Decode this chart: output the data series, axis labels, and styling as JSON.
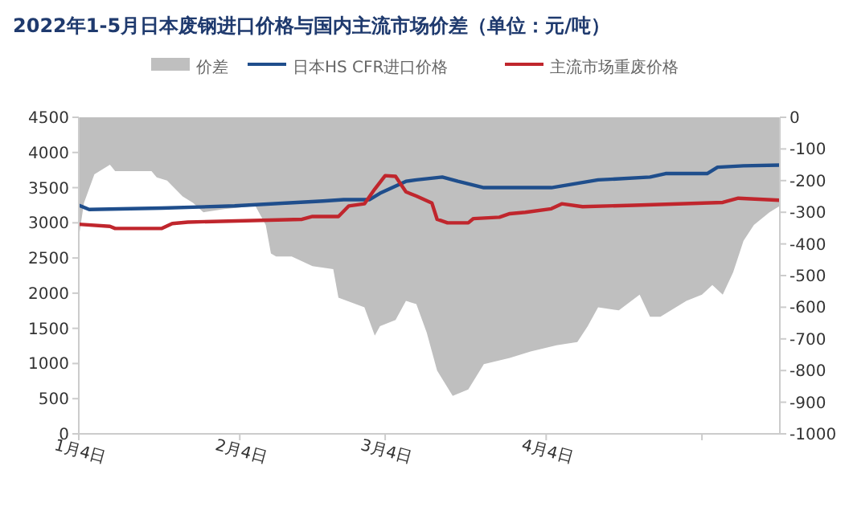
{
  "chart_data": {
    "type": "line",
    "title": "2022年1-5月日本废钢进口价格与国内主流市场价差（单位：元/吨）",
    "legend": "top",
    "xlim": [
      "--01-04",
      "--05-19"
    ],
    "xticks": [
      {
        "value": "--01-04",
        "label": "1月4日"
      },
      {
        "value": "--02-04",
        "label": "2月4日"
      },
      {
        "value": "--03-04",
        "label": "3月4日"
      },
      {
        "value": "--04-04",
        "label": "4月4日"
      },
      {
        "value": "--05-04",
        "label": null
      }
    ],
    "ylim": [
      0,
      4500
    ],
    "yticks": [
      0,
      500,
      1000,
      1500,
      2000,
      2500,
      3000,
      3500,
      4000,
      4500
    ],
    "y2lim": [
      -1000,
      0
    ],
    "y2ticks": [
      -1000,
      -900,
      -800,
      -700,
      -600,
      -500,
      -400,
      -300,
      -200,
      -100,
      0
    ],
    "grid": false,
    "series": [
      {
        "name": "价差",
        "type": "area",
        "axis": "y2",
        "color": "#bfbfbf",
        "x": [
          "--01-04",
          "--01-05",
          "--01-07",
          "--01-10",
          "--01-11",
          "--01-18",
          "--01-19",
          "--01-21",
          "--01-24",
          "--01-26",
          "--01-28",
          "--02-01",
          "--02-07",
          "--02-09",
          "--02-10",
          "--02-11",
          "--02-14",
          "--02-18",
          "--02-22",
          "--02-23",
          "--02-28",
          "--03-02",
          "--03-03",
          "--03-06",
          "--03-08",
          "--03-10",
          "--03-12",
          "--03-14",
          "--03-17",
          "--03-20",
          "--03-23",
          "--03-28",
          "--04-01",
          "--04-06",
          "--04-10",
          "--04-12",
          "--04-14",
          "--04-18",
          "--04-22",
          "--04-24",
          "--04-26",
          "--05-01",
          "--05-04",
          "--05-06",
          "--05-08",
          "--05-10",
          "--05-12",
          "--05-14",
          "--05-17",
          "--05-19"
        ],
        "values": [
          -380,
          -270,
          -180,
          -150,
          -170,
          -170,
          -190,
          -200,
          -250,
          -270,
          -300,
          -290,
          -280,
          -340,
          -430,
          -440,
          -440,
          -470,
          -480,
          -570,
          -600,
          -690,
          -660,
          -640,
          -580,
          -590,
          -680,
          -800,
          -880,
          -860,
          -780,
          -760,
          -740,
          -720,
          -710,
          -660,
          -600,
          -610,
          -560,
          -630,
          -630,
          -580,
          -560,
          -530,
          -560,
          -490,
          -390,
          -340,
          -300,
          -280
        ]
      },
      {
        "name": "日本HS CFR进口价格",
        "color": "#1f4e8c",
        "x": [
          "--01-04",
          "--01-06",
          "--01-20",
          "--02-03",
          "--02-20",
          "--02-24",
          "--03-01",
          "--03-03",
          "--03-08",
          "--03-10",
          "--03-15",
          "--03-18",
          "--03-23",
          "--04-05",
          "--04-14",
          "--04-24",
          "--04-27",
          "--05-05",
          "--05-07",
          "--05-12",
          "--05-19"
        ],
        "values": [
          3250,
          3190,
          3210,
          3240,
          3310,
          3330,
          3330,
          3420,
          3590,
          3610,
          3650,
          3590,
          3500,
          3500,
          3610,
          3650,
          3700,
          3700,
          3790,
          3810,
          3820
        ]
      },
      {
        "name": "主流市场重废价格",
        "color": "#c0262d",
        "x": [
          "--01-04",
          "--01-10",
          "--01-11",
          "--01-20",
          "--01-22",
          "--01-25",
          "--02-16",
          "--02-18",
          "--02-23",
          "--02-25",
          "--02-28",
          "--03-02",
          "--03-04",
          "--03-06",
          "--03-07",
          "--03-08",
          "--03-10",
          "--03-13",
          "--03-14",
          "--03-16",
          "--03-20",
          "--03-21",
          "--03-26",
          "--03-28",
          "--03-31",
          "--04-05",
          "--04-07",
          "--04-11",
          "--04-21",
          "--05-08",
          "--05-11",
          "--05-19"
        ],
        "values": [
          2980,
          2950,
          2920,
          2920,
          2990,
          3010,
          3050,
          3090,
          3090,
          3240,
          3270,
          3480,
          3670,
          3660,
          3550,
          3440,
          3380,
          3280,
          3050,
          3000,
          3000,
          3060,
          3080,
          3130,
          3150,
          3200,
          3270,
          3230,
          3250,
          3290,
          3350,
          3320
        ]
      }
    ]
  }
}
